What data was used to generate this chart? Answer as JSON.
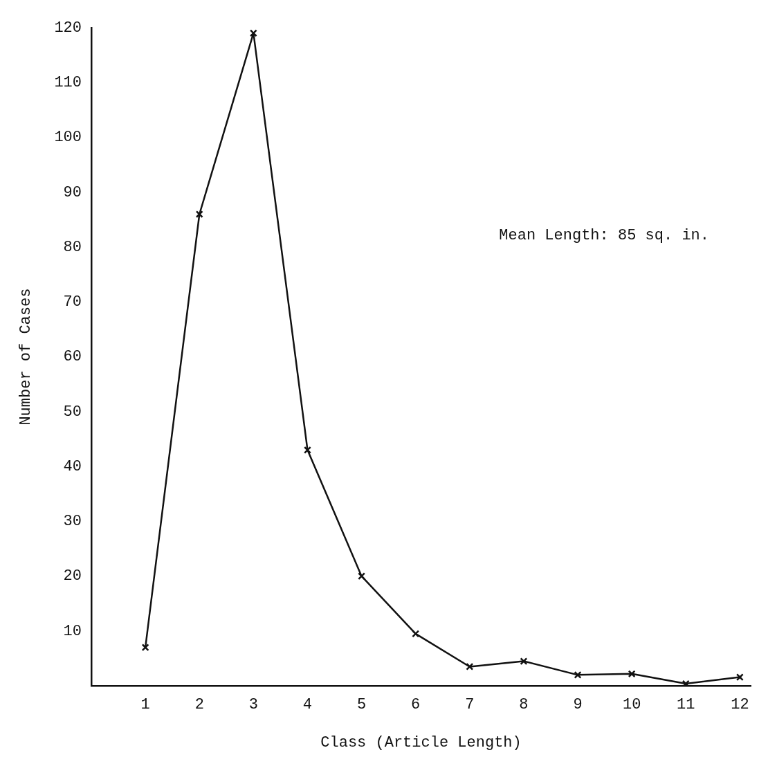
{
  "chart_data": {
    "type": "line",
    "xlabel": "Class (Article Length)",
    "ylabel": "Number of Cases",
    "annotations": [
      "Mean Length: 85 sq. in."
    ],
    "x": [
      1,
      2,
      3,
      4,
      5,
      6,
      7,
      8,
      9,
      10,
      11,
      12
    ],
    "series": [
      {
        "color": "#111111",
        "values": [
          7,
          86,
          119,
          43,
          20,
          9.5,
          3.5,
          4.5,
          2,
          2.2,
          0.4,
          1.6
        ]
      }
    ],
    "xlim": [
      0,
      12.2
    ],
    "xticks": [
      1,
      2,
      3,
      4,
      5,
      6,
      7,
      8,
      9,
      10,
      11,
      12
    ],
    "ylim": [
      0,
      120
    ],
    "yticks": [
      {
        "value": 0,
        "label": null
      },
      10,
      20,
      30,
      40,
      50,
      60,
      70,
      80,
      90,
      100,
      110,
      120
    ],
    "grid": false,
    "legend": false,
    "marker": "cross",
    "line_style": "solid"
  }
}
